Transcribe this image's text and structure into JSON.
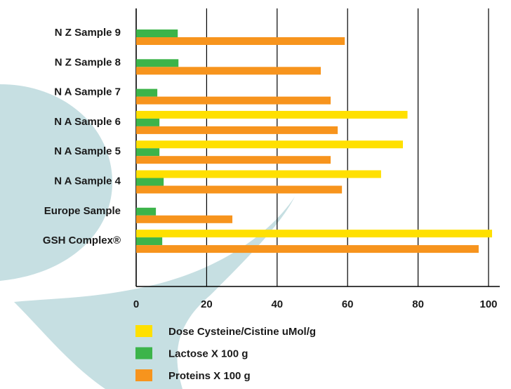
{
  "chart_data": {
    "type": "hbar",
    "categories": [
      "N Z Sample 9",
      "N Z Sample 8",
      "N A Sample 7",
      "N A Sample 6",
      "N A Sample 5",
      "N A Sample 4",
      "Europe Sample",
      "GSH Complex®"
    ],
    "series": [
      {
        "name": "Dose Cysteine/Cistine uMol/g",
        "color": "#ffe000",
        "values": [
          null,
          null,
          null,
          77,
          75.7,
          69.5,
          null,
          101
        ]
      },
      {
        "name": "Lactose X 100 g",
        "color": "#3cb44a",
        "values": [
          11.8,
          12,
          6,
          6.6,
          6.6,
          7.8,
          5.6,
          7.4
        ]
      },
      {
        "name": "Proteins X 100 g",
        "color": "#f7941d",
        "values": [
          59.2,
          52.4,
          55.2,
          57.2,
          55.2,
          58.4,
          27.3,
          97.2
        ]
      }
    ],
    "xlim": [
      0,
      100
    ],
    "xticks": [
      0,
      20,
      40,
      60,
      80,
      100
    ],
    "grid": true
  }
}
